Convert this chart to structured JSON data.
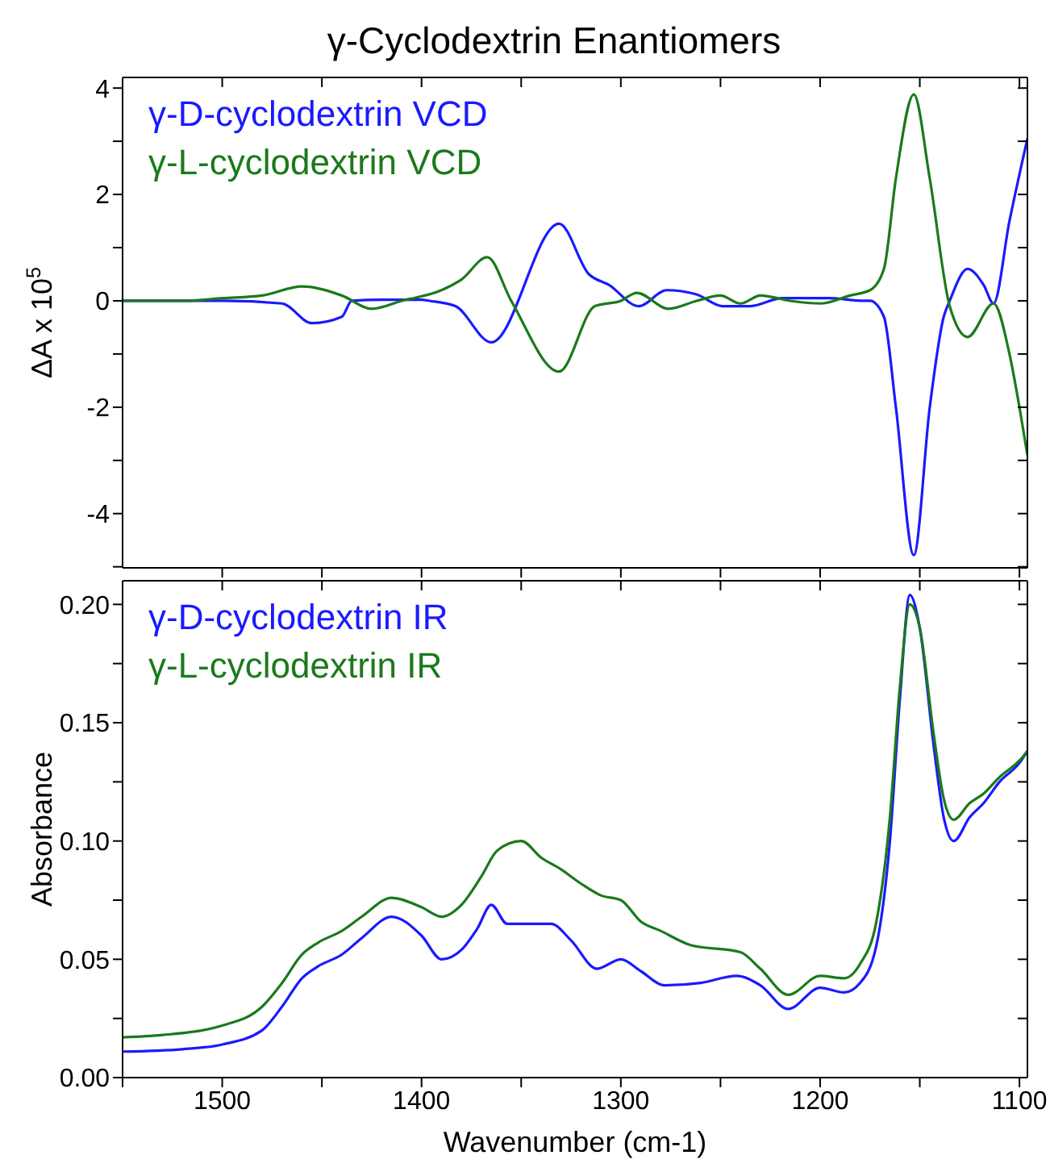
{
  "chart_data": [
    {
      "type": "line",
      "title": "γ-Cyclodextrin Enantiomers",
      "ylabel": "ΔA x 10$^{5}$",
      "legend": "top left",
      "tick_labels": "y",
      "xlim": [
        1550,
        1096
      ],
      "xticks": [
        {
          "value": 1500,
          "label": null
        },
        {
          "value": 1450,
          "label": null
        },
        {
          "value": 1400,
          "label": null
        },
        {
          "value": 1350,
          "label": null
        },
        {
          "value": 1300,
          "label": null
        },
        {
          "value": 1250,
          "label": null
        },
        {
          "value": 1200,
          "label": null
        },
        {
          "value": 1150,
          "label": null
        },
        {
          "value": 1100,
          "label": null
        }
      ],
      "ylim": [
        -5.02,
        4.2
      ],
      "yticks": [
        {
          "value": -5,
          "label": null
        },
        -4,
        {
          "value": -3,
          "label": null
        },
        -2,
        {
          "value": -1,
          "label": null
        },
        0,
        {
          "value": 1,
          "label": null
        },
        2,
        {
          "value": 3,
          "label": null
        },
        4
      ],
      "series": [
        {
          "name": "γ-D-cyclodextrin VCD",
          "color": "#1a1aff",
          "x": [
            1550,
            1520,
            1500,
            1470,
            1455,
            1440,
            1435,
            1420,
            1400,
            1396,
            1383,
            1365,
            1331,
            1316,
            1306,
            1291,
            1277,
            1262,
            1249,
            1235,
            1219,
            1195,
            1178,
            1175,
            1168,
            1162,
            1153,
            1145,
            1138,
            1135,
            1126,
            1118,
            1113,
            1105,
            1096
          ],
          "values": [
            0,
            0,
            0,
            -0.05,
            -0.42,
            -0.3,
            0,
            0.02,
            0.02,
            0,
            -0.1,
            -0.78,
            1.45,
            0.5,
            0.3,
            -0.1,
            0.2,
            0.12,
            -0.1,
            -0.1,
            0.05,
            0.05,
            0,
            0,
            -0.3,
            -2.0,
            -4.78,
            -2.0,
            -0.3,
            0,
            0.6,
            0.3,
            -0.05,
            1.5,
            3.05
          ]
        },
        {
          "name": "γ-L-cyclodextrin VCD",
          "color": "#1a7a1a",
          "x": [
            1550,
            1520,
            1500,
            1480,
            1460,
            1440,
            1425,
            1410,
            1390,
            1380,
            1367,
            1355,
            1331,
            1313,
            1300,
            1292,
            1276,
            1262,
            1250,
            1240,
            1230,
            1215,
            1200,
            1185,
            1175,
            1168,
            1162,
            1153,
            1145,
            1135,
            1126,
            1113,
            1105,
            1100,
            1096
          ],
          "values": [
            0,
            0,
            0.05,
            0.1,
            0.27,
            0.1,
            -0.15,
            0,
            0.2,
            0.4,
            0.82,
            0,
            -1.33,
            -0.1,
            0,
            0.15,
            -0.15,
            0,
            0.1,
            -0.05,
            0.1,
            0,
            -0.05,
            0.1,
            0.2,
            0.6,
            2.3,
            3.88,
            2.3,
            -0.1,
            -0.68,
            -0.05,
            -1.0,
            -2.0,
            -2.9
          ]
        }
      ]
    },
    {
      "type": "line",
      "xlabel": "Wavenumber (cm-1)",
      "ylabel": "Absorbance",
      "legend": "top left",
      "xlim": [
        1550,
        1096
      ],
      "xticks": [
        {
          "value": 1550,
          "label": null
        },
        1500,
        {
          "value": 1450,
          "label": null
        },
        1400,
        {
          "value": 1350,
          "label": null
        },
        1300,
        {
          "value": 1250,
          "label": null
        },
        1200,
        {
          "value": 1150,
          "label": null
        },
        1100
      ],
      "ylim": [
        0,
        0.21
      ],
      "yticks": [
        {
          "value": 0,
          "label": "0.00"
        },
        {
          "value": 0.025,
          "label": null
        },
        {
          "value": 0.05,
          "label": "0.05"
        },
        {
          "value": 0.075,
          "label": null
        },
        {
          "value": 0.1,
          "label": "0.10"
        },
        {
          "value": 0.125,
          "label": null
        },
        {
          "value": 0.15,
          "label": "0.15"
        },
        {
          "value": 0.175,
          "label": null
        },
        {
          "value": 0.2,
          "label": "0.20"
        }
      ],
      "series": [
        {
          "name": "γ-D-cyclodextrin IR",
          "color": "#1a1aff",
          "x": [
            1550,
            1520,
            1500,
            1480,
            1470,
            1460,
            1452,
            1440,
            1430,
            1415,
            1400,
            1390,
            1380,
            1372,
            1365,
            1357,
            1350,
            1335,
            1325,
            1312,
            1300,
            1290,
            1278,
            1260,
            1242,
            1230,
            1216,
            1200,
            1188,
            1180,
            1172,
            1165,
            1160,
            1155,
            1150,
            1143,
            1138,
            1133,
            1125,
            1118,
            1110,
            1100,
            1096
          ],
          "values": [
            0.011,
            0.012,
            0.014,
            0.02,
            0.03,
            0.042,
            0.047,
            0.052,
            0.059,
            0.068,
            0.06,
            0.05,
            0.054,
            0.063,
            0.073,
            0.065,
            0.065,
            0.065,
            0.058,
            0.046,
            0.05,
            0.045,
            0.039,
            0.04,
            0.043,
            0.039,
            0.029,
            0.038,
            0.036,
            0.04,
            0.055,
            0.1,
            0.16,
            0.204,
            0.19,
            0.14,
            0.11,
            0.1,
            0.11,
            0.116,
            0.125,
            0.133,
            0.138
          ]
        },
        {
          "name": "γ-L-cyclodextrin IR",
          "color": "#1a7a1a",
          "x": [
            1550,
            1530,
            1500,
            1480,
            1470,
            1460,
            1452,
            1440,
            1430,
            1415,
            1400,
            1390,
            1380,
            1370,
            1362,
            1350,
            1340,
            1330,
            1320,
            1310,
            1300,
            1290,
            1280,
            1265,
            1240,
            1230,
            1216,
            1200,
            1188,
            1180,
            1172,
            1165,
            1160,
            1155,
            1150,
            1143,
            1138,
            1133,
            1125,
            1118,
            1110,
            1100,
            1096
          ],
          "values": [
            0.017,
            0.018,
            0.022,
            0.03,
            0.04,
            0.052,
            0.057,
            0.062,
            0.068,
            0.076,
            0.072,
            0.068,
            0.073,
            0.085,
            0.096,
            0.1,
            0.093,
            0.088,
            0.082,
            0.077,
            0.075,
            0.066,
            0.062,
            0.056,
            0.053,
            0.046,
            0.035,
            0.043,
            0.042,
            0.048,
            0.065,
            0.11,
            0.165,
            0.2,
            0.19,
            0.145,
            0.118,
            0.109,
            0.116,
            0.12,
            0.127,
            0.134,
            0.138
          ]
        }
      ]
    }
  ]
}
